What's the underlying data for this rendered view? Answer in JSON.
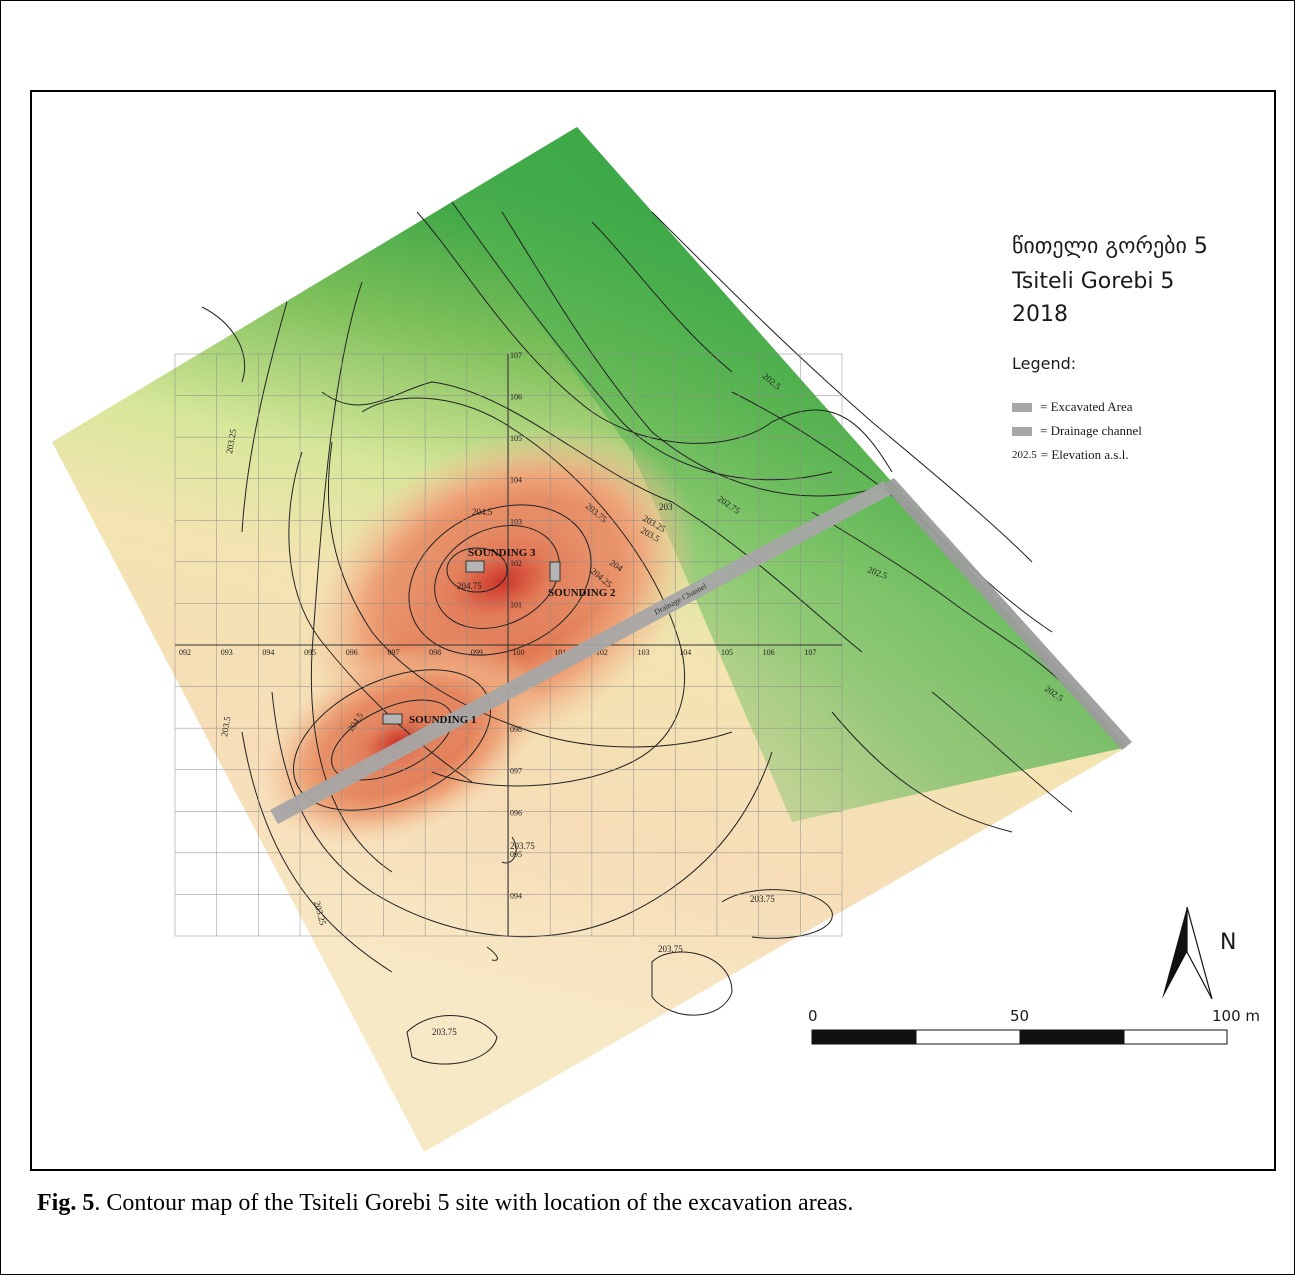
{
  "map": {
    "title_georgian": "წითელი გორები 5",
    "title_latin": "Tsiteli Gorebi 5",
    "year": "2018",
    "legend": {
      "title": "Legend:",
      "excavated_area": "= Excavated Area",
      "drainage_channel": "= Drainage channel",
      "elevation_key": "202.5",
      "elevation_text": "= Elevation a.s.l."
    },
    "soundings": [
      "SOUNDING 1",
      "SOUNDING 2",
      "SOUNDING 3"
    ],
    "channel_label": "Drainage Channel",
    "grid_x_labels": [
      "092",
      "093",
      "094",
      "095",
      "096",
      "097",
      "098",
      "099",
      "100",
      "101",
      "102",
      "103",
      "104",
      "105",
      "106",
      "107"
    ],
    "grid_y_labels": [
      "107",
      "106",
      "105",
      "104",
      "103",
      "102",
      "101",
      "099",
      "098",
      "097",
      "096",
      "095",
      "094"
    ],
    "contour_labels": [
      "203.25",
      "203.5",
      "203.75",
      "203",
      "202.75",
      "204",
      "204.25",
      "204.5",
      "204.75",
      "202.5"
    ],
    "north_label": "N",
    "scale": {
      "start": "0",
      "mid": "50",
      "end": "100 m"
    },
    "colors": {
      "high": "#d23c2a",
      "mid": "#f2c89a",
      "low_yellow": "#f0eec0",
      "low_green": "#1f9c3c",
      "channel": "#a7a7a7"
    }
  },
  "caption": {
    "label": "Fig. 5",
    "text": ". Contour map of the Tsiteli Gorebi 5 site with location of the excavation areas."
  }
}
